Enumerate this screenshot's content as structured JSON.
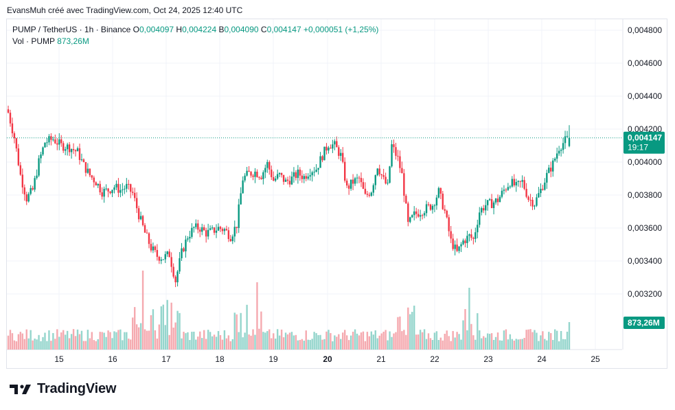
{
  "caption": "EvansMuh créé avec TradingView.com, Oct 24, 2025 12:40 UTC",
  "legend": {
    "symbol": "PUMP / TetherUS · 1h · Binance",
    "o_label": "O",
    "o_value": "0,004097",
    "h_label": "H",
    "h_value": "0,004224",
    "b_label": "B",
    "b_value": "0,004090",
    "c_label": "C",
    "c_value": "0,004147",
    "change": "+0,000051 (+1,25%)",
    "vol_label": "Vol · PUMP",
    "vol_value": "873,26M"
  },
  "price_label": {
    "price": "0,004147",
    "countdown": "19:17"
  },
  "volume_label": "873,26M",
  "brand": "TradingView",
  "colors": {
    "up": "#089981",
    "down": "#f23645",
    "up_vol": "#94d5cc",
    "down_vol": "#f5a9af",
    "grid": "#f0f3fa",
    "label_bg": "#089981"
  },
  "chart_data": {
    "type": "candlestick",
    "title": "PUMP / TetherUS · 1h · Binance",
    "y_ticks": [
      "0,004800",
      "0,004600",
      "0,004400",
      "0,004200",
      "0,004000",
      "0,003800",
      "0,003600",
      "0,003400",
      "0,003200"
    ],
    "y_tick_values": [
      0.0048,
      0.0046,
      0.0044,
      0.0042,
      0.004,
      0.0038,
      0.0036,
      0.0034,
      0.0032
    ],
    "ylim": [
      0.00308,
      0.00491
    ],
    "x_ticks": [
      "15",
      "16",
      "17",
      "18",
      "19",
      "20",
      "21",
      "22",
      "23",
      "24",
      "25"
    ],
    "x_tick_bold": [
      "20"
    ],
    "last_price": 0.004147,
    "close_path": [
      [
        0,
        0.0043
      ],
      [
        3,
        0.00415
      ],
      [
        6,
        0.00392
      ],
      [
        9,
        0.00378
      ],
      [
        12,
        0.00383
      ],
      [
        15,
        0.004
      ],
      [
        18,
        0.00412
      ],
      [
        22,
        0.00414
      ],
      [
        26,
        0.0041
      ],
      [
        30,
        0.00409
      ],
      [
        34,
        0.00406
      ],
      [
        37,
        0.00398
      ],
      [
        40,
        0.00392
      ],
      [
        43,
        0.00388
      ],
      [
        46,
        0.00382
      ],
      [
        49,
        0.00383
      ],
      [
        52,
        0.00385
      ],
      [
        55,
        0.00383
      ],
      [
        58,
        0.00385
      ],
      [
        61,
        0.00381
      ],
      [
        64,
        0.00368
      ],
      [
        67,
        0.00357
      ],
      [
        70,
        0.00348
      ],
      [
        73,
        0.00343
      ],
      [
        76,
        0.00342
      ],
      [
        79,
        0.00344
      ],
      [
        82,
        0.00328
      ],
      [
        85,
        0.00345
      ],
      [
        88,
        0.00355
      ],
      [
        91,
        0.0036
      ],
      [
        94,
        0.0036
      ],
      [
        97,
        0.00357
      ],
      [
        100,
        0.00358
      ],
      [
        103,
        0.0036
      ],
      [
        106,
        0.00359
      ],
      [
        109,
        0.00355
      ],
      [
        112,
        0.00362
      ],
      [
        115,
        0.0039
      ],
      [
        118,
        0.00393
      ],
      [
        121,
        0.00394
      ],
      [
        124,
        0.00392
      ],
      [
        127,
        0.00399
      ],
      [
        130,
        0.00389
      ],
      [
        133,
        0.00392
      ],
      [
        136,
        0.00388
      ],
      [
        139,
        0.0039
      ],
      [
        142,
        0.00393
      ],
      [
        145,
        0.00391
      ],
      [
        148,
        0.00395
      ],
      [
        151,
        0.00396
      ],
      [
        154,
        0.00404
      ],
      [
        157,
        0.00411
      ],
      [
        160,
        0.0041
      ],
      [
        163,
        0.00404
      ],
      [
        166,
        0.00384
      ],
      [
        169,
        0.00388
      ],
      [
        172,
        0.0039
      ],
      [
        175,
        0.00379
      ],
      [
        178,
        0.00383
      ],
      [
        181,
        0.00398
      ],
      [
        184,
        0.00389
      ],
      [
        186,
        0.00385
      ],
      [
        188,
        0.0041
      ],
      [
        191,
        0.00402
      ],
      [
        193,
        0.00392
      ],
      [
        196,
        0.00362
      ],
      [
        199,
        0.00368
      ],
      [
        202,
        0.0037
      ],
      [
        205,
        0.00372
      ],
      [
        208,
        0.00374
      ],
      [
        211,
        0.00382
      ],
      [
        214,
        0.0037
      ],
      [
        217,
        0.00352
      ],
      [
        220,
        0.00345
      ],
      [
        223,
        0.00352
      ],
      [
        226,
        0.00355
      ],
      [
        228,
        0.00353
      ],
      [
        231,
        0.0037
      ],
      [
        234,
        0.00374
      ],
      [
        237,
        0.00375
      ],
      [
        240,
        0.00377
      ],
      [
        243,
        0.00383
      ],
      [
        246,
        0.00388
      ],
      [
        249,
        0.00385
      ],
      [
        252,
        0.00388
      ],
      [
        255,
        0.00378
      ],
      [
        258,
        0.00375
      ],
      [
        261,
        0.00383
      ],
      [
        264,
        0.00392
      ],
      [
        267,
        0.00399
      ],
      [
        270,
        0.00409
      ],
      [
        273,
        0.00413
      ],
      [
        275,
        0.00415
      ]
    ],
    "volume_profile": "low baseline with spikes around Oct 16–17 and Oct 18–19 and Oct 22–23",
    "current_volume": "873,26M"
  }
}
